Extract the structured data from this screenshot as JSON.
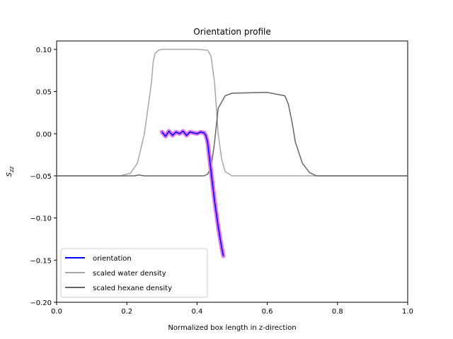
{
  "chart_data": {
    "type": "line",
    "title": "Orientation profile",
    "xlabel": "Normalized box length in z-direction",
    "ylabel_main": "S",
    "ylabel_sub": "zz",
    "xlim": [
      0.0,
      1.0
    ],
    "ylim": [
      -0.2,
      0.11
    ],
    "xticks": [
      0.0,
      0.2,
      0.4,
      0.6,
      0.8,
      1.0
    ],
    "xtick_labels": [
      "0.0",
      "0.2",
      "0.4",
      "0.6",
      "0.8",
      "1.0"
    ],
    "yticks": [
      -0.2,
      -0.15,
      -0.1,
      -0.05,
      0.0,
      0.05,
      0.1
    ],
    "ytick_labels": [
      "−0.20",
      "−0.15",
      "−0.10",
      "−0.05",
      "0.00",
      "0.05",
      "0.10"
    ],
    "grid": false,
    "legend_position": "lower-left",
    "series": [
      {
        "name": "scaled water density",
        "color": "#a6a6a6",
        "x": [
          0.0,
          0.18,
          0.21,
          0.23,
          0.25,
          0.27,
          0.275,
          0.28,
          0.29,
          0.3,
          0.33,
          0.4,
          0.43,
          0.44,
          0.45,
          0.46,
          0.47,
          0.48,
          0.5,
          1.0
        ],
        "y": [
          -0.05,
          -0.05,
          -0.047,
          -0.035,
          0.0,
          0.06,
          0.085,
          0.095,
          0.099,
          0.1,
          0.1,
          0.1,
          0.099,
          0.092,
          0.06,
          0.0,
          -0.03,
          -0.045,
          -0.05,
          -0.05
        ]
      },
      {
        "name": "scaled hexane density",
        "color": "#666666",
        "x": [
          0.0,
          0.22,
          0.235,
          0.25,
          0.3,
          0.42,
          0.43,
          0.44,
          0.45,
          0.46,
          0.48,
          0.5,
          0.6,
          0.65,
          0.66,
          0.67,
          0.68,
          0.7,
          0.72,
          0.74,
          1.0
        ],
        "y": [
          -0.05,
          -0.05,
          -0.049,
          -0.05,
          -0.05,
          -0.05,
          -0.048,
          -0.04,
          -0.01,
          0.03,
          0.045,
          0.048,
          0.049,
          0.045,
          0.035,
          0.015,
          -0.01,
          -0.035,
          -0.046,
          -0.05,
          -0.05
        ]
      },
      {
        "name": "orientation",
        "color": "#0000ff",
        "error_color": "#dd77ee",
        "x": [
          0.3,
          0.31,
          0.32,
          0.33,
          0.34,
          0.35,
          0.36,
          0.37,
          0.38,
          0.39,
          0.4,
          0.41,
          0.42,
          0.425,
          0.43,
          0.44,
          0.45,
          0.46,
          0.47,
          0.475
        ],
        "y": [
          0.002,
          -0.003,
          0.003,
          -0.002,
          0.002,
          0.0,
          0.003,
          -0.002,
          0.002,
          0.001,
          0.0,
          0.002,
          0.001,
          -0.002,
          -0.01,
          -0.045,
          -0.08,
          -0.11,
          -0.135,
          -0.145
        ]
      }
    ],
    "legend": [
      {
        "label": "orientation",
        "color": "#0000ff"
      },
      {
        "label": "scaled water density",
        "color": "#a6a6a6"
      },
      {
        "label": "scaled hexane density",
        "color": "#666666"
      }
    ]
  }
}
